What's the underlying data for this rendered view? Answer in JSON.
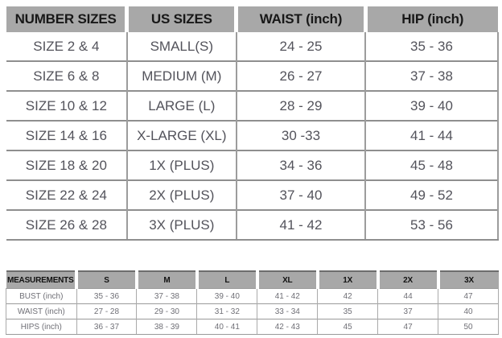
{
  "colors": {
    "header_bg": "#a8a8a8",
    "header_text": "#181818",
    "body_text": "#53535b",
    "grid_line": "#8f8f8f",
    "page_bg": "#ffffff"
  },
  "chart_data": [
    {
      "type": "table",
      "name": "size-conversion-chart",
      "columns": [
        "NUMBER SIZES",
        "US SIZES",
        "WAIST (inch)",
        "HIP (inch)"
      ],
      "rows": [
        [
          "SIZE 2 & 4",
          "SMALL(S)",
          "24 - 25",
          "35 - 36"
        ],
        [
          "SIZE 6 & 8",
          "MEDIUM (M)",
          "26 - 27",
          "37 - 38"
        ],
        [
          "SIZE 10 & 12",
          "LARGE (L)",
          "28 - 29",
          "39 - 40"
        ],
        [
          "SIZE 14 & 16",
          "X-LARGE (XL)",
          "30 -33",
          "41 - 44"
        ],
        [
          "SIZE 18 & 20",
          "1X (PLUS)",
          "34 - 36",
          "45 - 48"
        ],
        [
          "SIZE 22 & 24",
          "2X (PLUS)",
          "37 - 40",
          "49 - 52"
        ],
        [
          "SIZE 26 & 28",
          "3X (PLUS)",
          "41 - 42",
          "53 - 56"
        ]
      ],
      "column_widths_pct": [
        24.5,
        22.3,
        26.2,
        27.0
      ]
    },
    {
      "type": "table",
      "name": "measurements-chart",
      "columns": [
        "MEASUREMENTS",
        "S",
        "M",
        "L",
        "XL",
        "1X",
        "2X",
        "3X"
      ],
      "rows": [
        [
          "BUST (inch)",
          "35 - 36",
          "37 - 38",
          "39 - 40",
          "41 - 42",
          "42",
          "44",
          "47"
        ],
        [
          "WAIST (inch)",
          "27 - 28",
          "29 - 30",
          "31 - 32",
          "33 - 34",
          "35",
          "37",
          "40"
        ],
        [
          "HIPS (inch)",
          "36 - 37",
          "38 - 39",
          "40 - 41",
          "42 - 43",
          "45",
          "47",
          "50"
        ]
      ],
      "column_widths_pct": [
        14.3,
        12.24,
        12.24,
        12.24,
        12.24,
        12.24,
        12.24,
        12.24
      ]
    }
  ]
}
